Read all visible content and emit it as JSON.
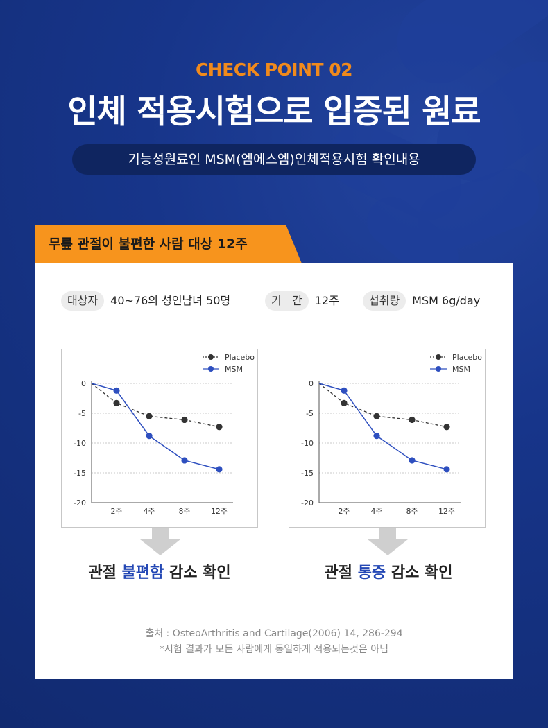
{
  "header": {
    "eyebrow": "CHECK POINT 02",
    "title": "인체 적용시험으로 입증된 원료",
    "subtitle": "기능성원료인 MSM(엠에스엠)인체적용시험 확인내용"
  },
  "tab": {
    "label": "무릎 관절이 불편한 사람 대상 12주",
    "color": "#f7941d"
  },
  "info": [
    {
      "tag": "대상자",
      "value": "40~76의 성인남녀 50명"
    },
    {
      "tag": "기   간",
      "value": "12주"
    },
    {
      "tag": "섭취량",
      "value": "MSM 6g/day"
    }
  ],
  "captions": [
    {
      "pre": "관절 ",
      "highlight": "불편함",
      "post": " 감소 확인"
    },
    {
      "pre": "관절 ",
      "highlight": "통증",
      "post": " 감소 확인"
    }
  ],
  "source": {
    "line1": "출처 : OsteoArthritis and Cartilage(2006) 14, 286-294",
    "line2": "*시험 결과가 모든 사람에게 동일하게 적용되는것은 아님"
  },
  "colors": {
    "accent": "#f08a1c",
    "highlight": "#2448b5",
    "msm": "#2e4fbf",
    "placebo": "#333333"
  },
  "chart_data": [
    {
      "type": "line",
      "x": [
        "0",
        "2주",
        "4주",
        "8주",
        "12주"
      ],
      "xticks": [
        "2주",
        "4주",
        "8주",
        "12주"
      ],
      "ylim": [
        -20,
        0
      ],
      "yticks": [
        "0",
        "-5",
        "-10",
        "-15",
        "-20"
      ],
      "grid": true,
      "legend": "top-right",
      "series": [
        {
          "name": "Placebo",
          "values": [
            0,
            -3.3,
            -5.5,
            -6.1,
            -7.3
          ],
          "color": "#333333",
          "dashed": true
        },
        {
          "name": "MSM",
          "values": [
            0,
            -1.2,
            -8.8,
            -12.9,
            -14.4
          ],
          "color": "#2e4fbf",
          "dashed": false
        }
      ]
    },
    {
      "type": "line",
      "x": [
        "0",
        "2주",
        "4주",
        "8주",
        "12주"
      ],
      "xticks": [
        "2주",
        "4주",
        "8주",
        "12주"
      ],
      "ylim": [
        -20,
        0
      ],
      "yticks": [
        "0",
        "-5",
        "-10",
        "-15",
        "-20"
      ],
      "grid": true,
      "legend": "top-right",
      "series": [
        {
          "name": "Placebo",
          "values": [
            0,
            -3.3,
            -5.5,
            -6.1,
            -7.3
          ],
          "color": "#333333",
          "dashed": true
        },
        {
          "name": "MSM",
          "values": [
            0,
            -1.2,
            -8.8,
            -12.9,
            -14.4
          ],
          "color": "#2e4fbf",
          "dashed": false
        }
      ]
    }
  ]
}
